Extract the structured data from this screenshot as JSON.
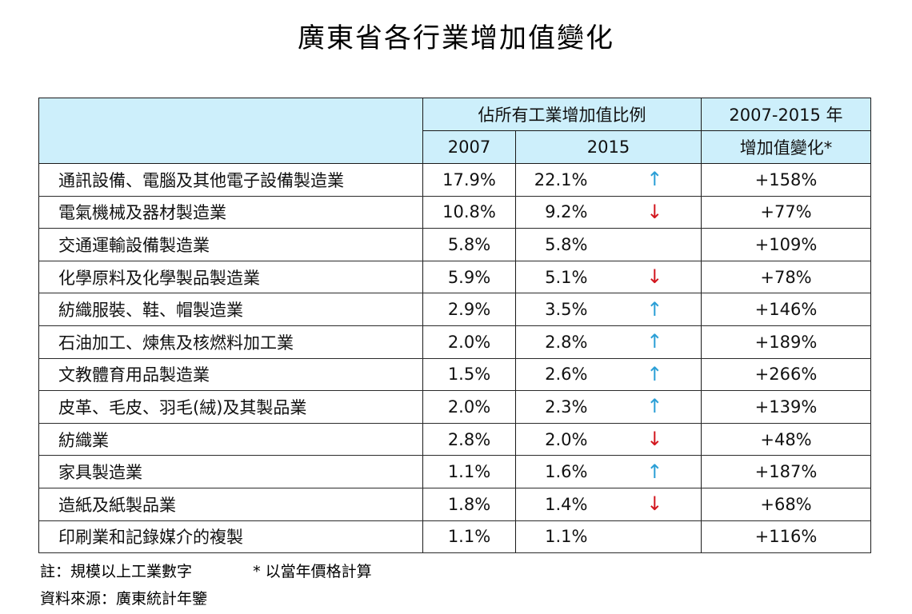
{
  "title": "廣東省各行業增加值變化",
  "header": {
    "share_label": "佔所有工業增加值比例",
    "year_2007": "2007",
    "year_2015": "2015",
    "change_line1": "2007-2015 年",
    "change_line2": "增加值變化*"
  },
  "rows": [
    {
      "name": "通訊設備、電腦及其他電子設備製造業",
      "y2007": "17.9%",
      "y2015": "22.1%",
      "trend": "up",
      "arrow": "↑",
      "change": "+158%"
    },
    {
      "name": "電氣機械及器材製造業",
      "y2007": "10.8%",
      "y2015": "9.2%",
      "trend": "down",
      "arrow": "↓",
      "change": "+77%"
    },
    {
      "name": "交通運輸設備製造業",
      "y2007": "5.8%",
      "y2015": "5.8%",
      "trend": "none",
      "arrow": "",
      "change": "+109%"
    },
    {
      "name": "化學原料及化學製品製造業",
      "y2007": "5.9%",
      "y2015": "5.1%",
      "trend": "down",
      "arrow": "↓",
      "change": "+78%"
    },
    {
      "name": "紡織服裝、鞋、帽製造業",
      "y2007": "2.9%",
      "y2015": "3.5%",
      "trend": "up",
      "arrow": "↑",
      "change": "+146%"
    },
    {
      "name": "石油加工、煉焦及核燃料加工業",
      "y2007": "2.0%",
      "y2015": "2.8%",
      "trend": "up",
      "arrow": "↑",
      "change": "+189%"
    },
    {
      "name": "文教體育用品製造業",
      "y2007": "1.5%",
      "y2015": "2.6%",
      "trend": "up",
      "arrow": "↑",
      "change": "+266%"
    },
    {
      "name": "皮革、毛皮、羽毛(絨)及其製品業",
      "y2007": "2.0%",
      "y2015": "2.3%",
      "trend": "up",
      "arrow": "↑",
      "change": "+139%"
    },
    {
      "name": "紡織業",
      "y2007": "2.8%",
      "y2015": "2.0%",
      "trend": "down",
      "arrow": "↓",
      "change": "+48%"
    },
    {
      "name": "家具製造業",
      "y2007": "1.1%",
      "y2015": "1.6%",
      "trend": "up",
      "arrow": "↑",
      "change": "+187%"
    },
    {
      "name": "造紙及紙製品業",
      "y2007": "1.8%",
      "y2015": "1.4%",
      "trend": "down",
      "arrow": "↓",
      "change": "+68%"
    },
    {
      "name": "印刷業和記錄媒介的複製",
      "y2007": "1.1%",
      "y2015": "1.1%",
      "trend": "none",
      "arrow": "",
      "change": "+116%"
    }
  ],
  "notes": {
    "note": "註：規模以上工業數字",
    "star_note": "* 以當年價格計算",
    "source": "資料來源：廣東統計年鑒"
  },
  "colors": {
    "header_bg": "#cdeffb",
    "up_arrow": "#2b9fd6",
    "down_arrow": "#d2161e"
  }
}
